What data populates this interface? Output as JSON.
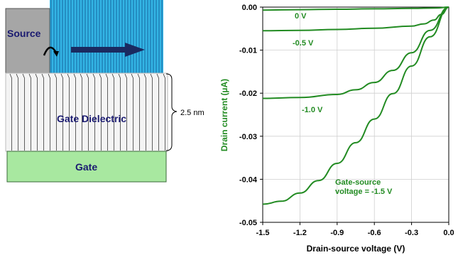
{
  "diagram": {
    "source_label": "Source",
    "dielectric_label": "Gate Dielectric",
    "gate_label": "Gate",
    "thickness_label": "2.5 nm",
    "colors": {
      "source": "#a6a6a6",
      "channel": "#33b5e5",
      "gate": "#a8e8a0",
      "text": "#1a1a70"
    }
  },
  "chart_data": {
    "type": "line",
    "xlabel": "Drain-source voltage (V)",
    "ylabel": "Drain current (µA)",
    "xlim": [
      -1.5,
      0.0
    ],
    "ylim": [
      -0.05,
      0.0
    ],
    "xticks": [
      "-1.5",
      "-1.2",
      "-0.9",
      "-0.6",
      "-0.3",
      "0.0"
    ],
    "yticks": [
      "0.00",
      "-0.01",
      "-0.02",
      "-0.03",
      "-0.04",
      "-0.05"
    ],
    "color": "#228b22",
    "series": [
      {
        "name": "0 V",
        "x": [
          -1.5,
          -1.2,
          -0.9,
          -0.6,
          -0.3,
          -0.1,
          0.0
        ],
        "y": [
          -0.0007,
          -0.0006,
          -0.0005,
          -0.0004,
          -0.0003,
          -0.0002,
          0.0
        ]
      },
      {
        "name": "-0.5 V",
        "x": [
          -1.5,
          -1.2,
          -0.9,
          -0.6,
          -0.3,
          -0.2,
          -0.12,
          -0.06,
          0.0
        ],
        "y": [
          -0.0055,
          -0.0054,
          -0.0052,
          -0.0049,
          -0.0044,
          -0.0039,
          -0.003,
          -0.0017,
          0.0
        ]
      },
      {
        "name": "-1.0 V",
        "x": [
          -1.5,
          -1.2,
          -0.9,
          -0.75,
          -0.6,
          -0.45,
          -0.3,
          -0.15,
          0.0
        ],
        "y": [
          -0.0212,
          -0.021,
          -0.0203,
          -0.0192,
          -0.0175,
          -0.0147,
          -0.0106,
          -0.0054,
          0.0
        ]
      },
      {
        "name": "Gate-source voltage = -1.5 V",
        "x": [
          -1.5,
          -1.35,
          -1.2,
          -1.05,
          -0.9,
          -0.75,
          -0.6,
          -0.45,
          -0.3,
          -0.15,
          0.0
        ],
        "y": [
          -0.0458,
          -0.0451,
          -0.0432,
          -0.0403,
          -0.0363,
          -0.0315,
          -0.026,
          -0.0201,
          -0.0137,
          -0.0069,
          0.0
        ]
      }
    ]
  }
}
